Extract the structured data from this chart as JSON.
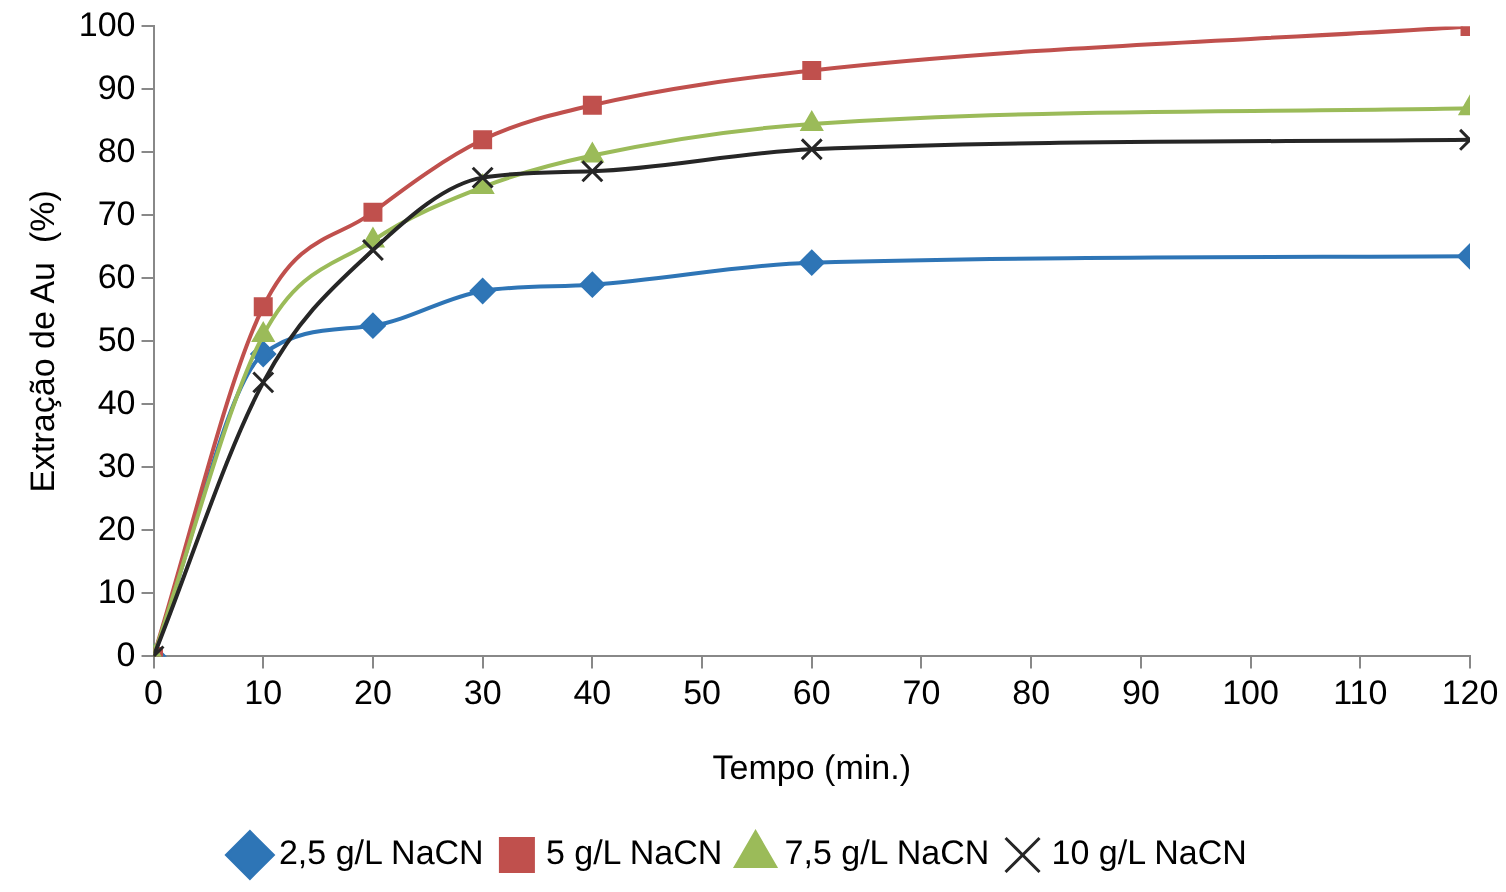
{
  "chart_data": {
    "type": "line",
    "xlabel": "Tempo (min.)",
    "ylabel": "Extração de Au  (%)",
    "xlim": [
      0,
      120
    ],
    "xticks": [
      0,
      10,
      20,
      30,
      40,
      50,
      60,
      70,
      80,
      90,
      100,
      110,
      120
    ],
    "ylim": [
      0,
      100
    ],
    "yticks": [
      0,
      10,
      20,
      30,
      40,
      50,
      60,
      70,
      80,
      90,
      100
    ],
    "grid": false,
    "legend": "bottom",
    "line_style": "solid",
    "x": [
      0,
      10,
      20,
      30,
      40,
      60,
      120
    ],
    "series": [
      {
        "name": "2,5 g/L NaCN",
        "color": "#2e75b6",
        "marker": "diamond",
        "values": [
          0,
          48,
          52.5,
          58,
          59,
          62.5,
          63.5
        ]
      },
      {
        "name": "5 g/L NaCN",
        "color": "#c0504d",
        "marker": "square",
        "values": [
          0,
          55.5,
          70.5,
          82,
          87.5,
          93,
          100
        ]
      },
      {
        "name": "7,5 g/L NaCN",
        "color": "#9bbb59",
        "marker": "triangle",
        "values": [
          0,
          51,
          66,
          74.5,
          79.5,
          84.5,
          87
        ]
      },
      {
        "name": "10 g/L NaCN",
        "color": "#262626",
        "marker": "cross",
        "values": [
          0,
          43.5,
          64.5,
          76,
          77,
          80.5,
          82
        ]
      }
    ]
  }
}
